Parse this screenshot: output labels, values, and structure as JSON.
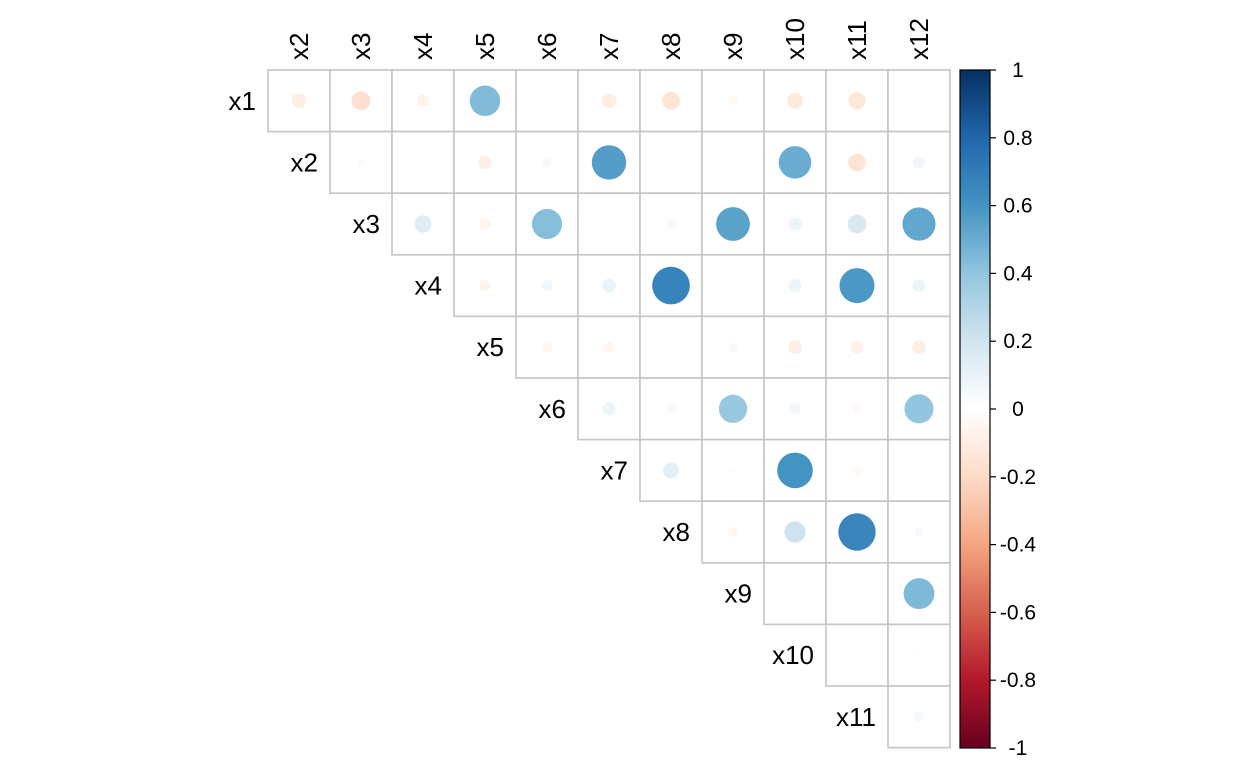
{
  "chart_data": {
    "type": "heatmap",
    "style": "corrplot-circle-upper",
    "row_labels": [
      "x1",
      "x2",
      "x3",
      "x4",
      "x5",
      "x6",
      "x7",
      "x8",
      "x9",
      "x10",
      "x11"
    ],
    "col_labels": [
      "x2",
      "x3",
      "x4",
      "x5",
      "x6",
      "x7",
      "x8",
      "x9",
      "x10",
      "x11",
      "x12"
    ],
    "matrix": [
      [
        -0.1,
        -0.17,
        -0.07,
        0.44,
        0.0,
        -0.1,
        -0.15,
        -0.04,
        -0.12,
        -0.14,
        0.01
      ],
      [
        null,
        0.03,
        0.01,
        -0.09,
        0.04,
        0.56,
        0.01,
        0.0,
        0.5,
        -0.15,
        0.07
      ],
      [
        null,
        null,
        0.14,
        -0.06,
        0.43,
        0.0,
        0.05,
        0.54,
        0.08,
        0.17,
        0.52
      ],
      [
        null,
        null,
        null,
        -0.06,
        0.06,
        0.09,
        0.67,
        0.01,
        0.08,
        0.58,
        0.08
      ],
      [
        null,
        null,
        null,
        null,
        -0.05,
        -0.05,
        0.01,
        0.04,
        -0.09,
        -0.08,
        -0.09
      ],
      [
        null,
        null,
        null,
        null,
        null,
        0.08,
        0.04,
        0.38,
        0.06,
        -0.04,
        0.4
      ],
      [
        null,
        null,
        null,
        null,
        null,
        null,
        0.12,
        -0.02,
        0.6,
        -0.04,
        0.01
      ],
      [
        null,
        null,
        null,
        null,
        null,
        null,
        null,
        -0.05,
        0.21,
        0.66,
        0.04
      ],
      [
        null,
        null,
        null,
        null,
        null,
        null,
        null,
        null,
        0.0,
        0.01,
        0.45
      ],
      [
        null,
        null,
        null,
        null,
        null,
        null,
        null,
        null,
        null,
        0.0,
        0.02
      ],
      [
        null,
        null,
        null,
        null,
        null,
        null,
        null,
        null,
        null,
        null,
        0.05
      ]
    ],
    "color_scale": {
      "range": [
        -1,
        1
      ],
      "ticks": [
        "1",
        "0.8",
        "0.6",
        "0.4",
        "0.2",
        "0",
        "-0.2",
        "-0.4",
        "-0.6",
        "-0.8",
        "-1"
      ],
      "colors": [
        "#67001F",
        "#B2182B",
        "#D6604D",
        "#F4A582",
        "#FDDBC7",
        "#FFFFFF",
        "#D1E5F0",
        "#92C5DE",
        "#4393C3",
        "#2166AC",
        "#053061"
      ]
    }
  }
}
